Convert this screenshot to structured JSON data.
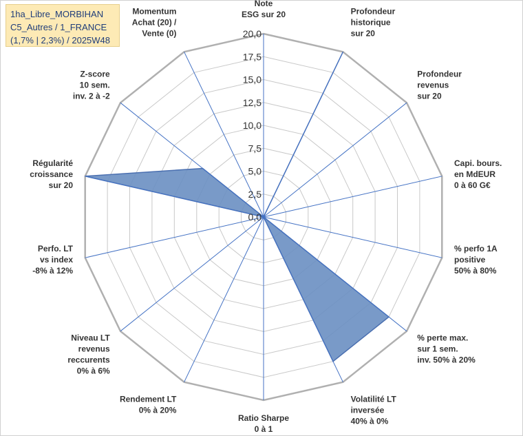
{
  "title_lines": [
    "1ha_Libre_MORBIHAN",
    "C5_Autres / 1_FRANCE",
    "(1,7% | 2,3%) / 2025W48"
  ],
  "chart_data": {
    "type": "radar",
    "range": [
      0,
      20
    ],
    "ticks": [
      "0,0",
      "2,5",
      "5,0",
      "7,5",
      "10,0",
      "12,5",
      "15,0",
      "17,5",
      "20,0"
    ],
    "axes": [
      "Note\nESG sur 20",
      "Profondeur\nhistorique\nsur 20",
      "Profondeur\nrevenus\nsur 20",
      "Capi. bours.\nen MdEUR\n0 à 60 G€",
      "% perfo 1A\npositive\n50% à 80%",
      "% perte max.\nsur 1 sem.\ninv. 50% à 20%",
      "Volatilité LT\ninversée\n40% à 0%",
      "Ratio Sharpe\n0 à 1",
      "Rendement LT\n0% à 20%",
      "Niveau LT\nrevenus\nreccurents\n0% à 6%",
      "Perfo. LT\nvs index\n-8% à 12%",
      "Régularité\ncroissance\nsur 20",
      "Z-score\n10 sem.\ninv. 2 à -2",
      "Momentum\nAchat (20) /\nVente (0)"
    ],
    "values": [
      0,
      20,
      0,
      0,
      0,
      17.5,
      17.5,
      0,
      0,
      0,
      0,
      20,
      8.5,
      0
    ],
    "colors": {
      "fill": "#6a8fc2",
      "line": "#4a6fb0",
      "grid": "#c8c8c8",
      "spoke": "#4472c4",
      "outer": "#b0b0b0"
    }
  }
}
